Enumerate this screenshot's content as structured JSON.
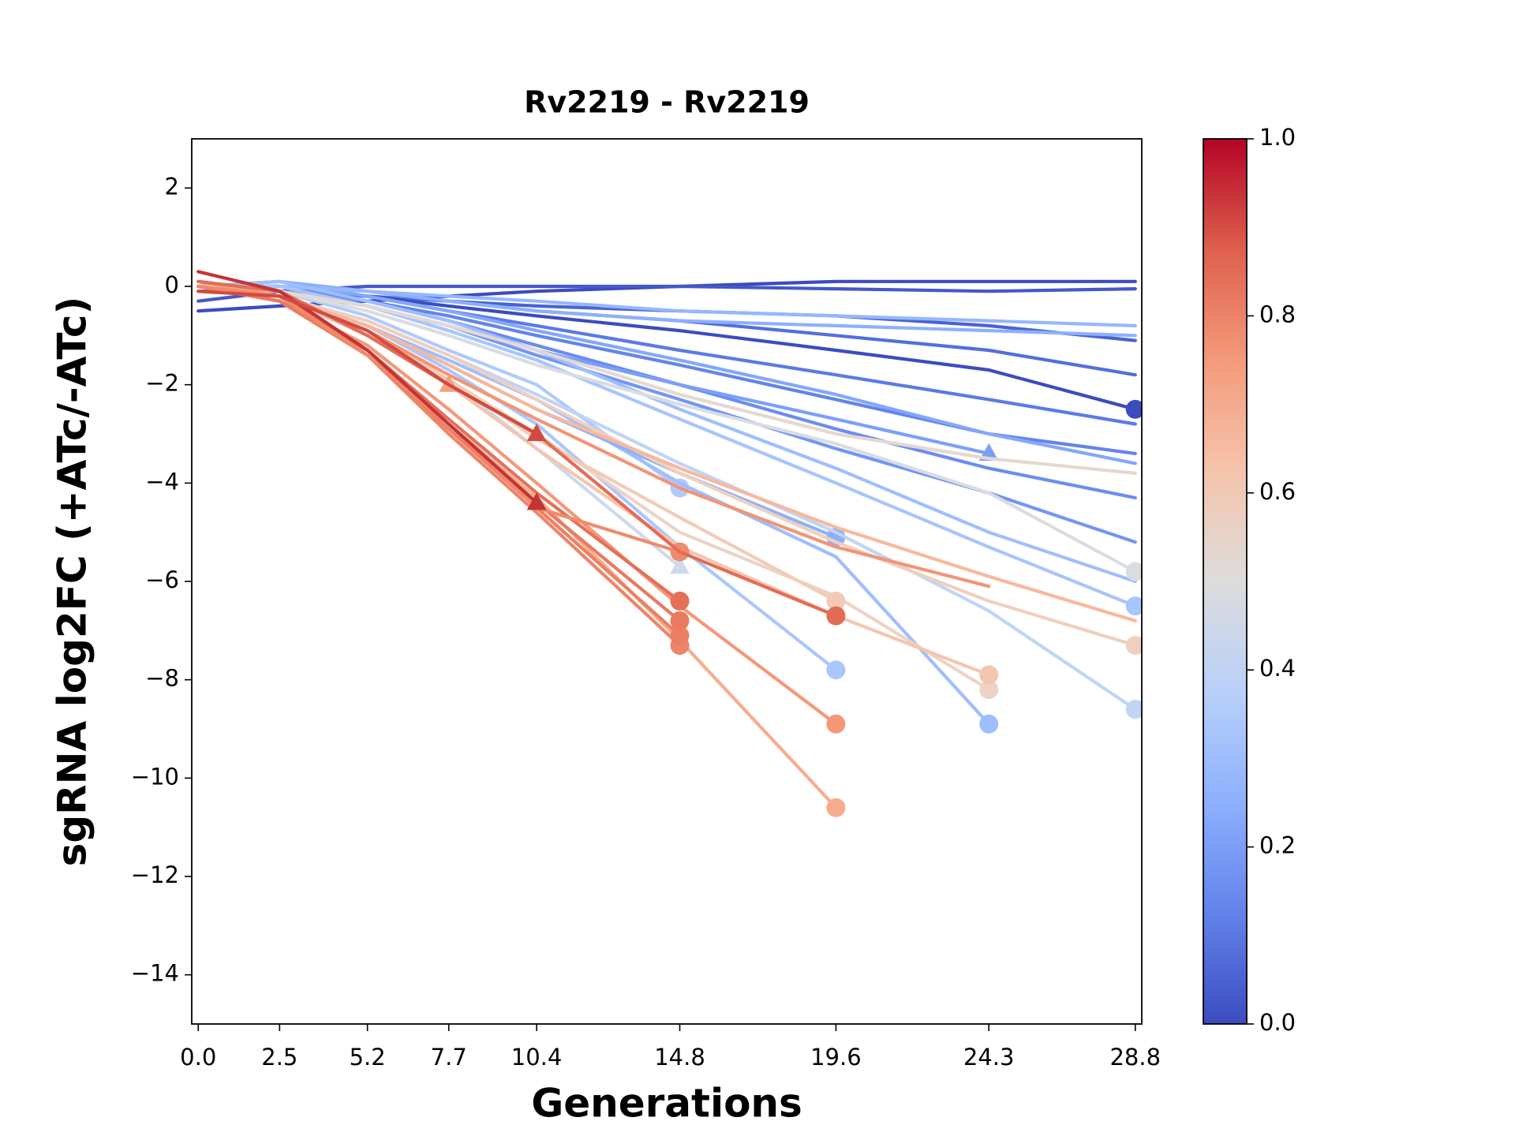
{
  "chart_data": {
    "type": "line",
    "title": "Rv2219 - Rv2219",
    "xlabel": "Generations",
    "ylabel": "sgRNA log2FC (+ATc/-ATc)",
    "x": [
      0,
      2.5,
      5.2,
      7.7,
      10.4,
      14.8,
      19.6,
      24.3,
      28.8
    ],
    "xlim": [
      -0.2,
      29
    ],
    "xticks": [
      {
        "value": 0,
        "label": "0.0"
      },
      2.5,
      5.2,
      7.7,
      10.4,
      14.8,
      19.6,
      24.3,
      28.8
    ],
    "ylim": [
      -15,
      3
    ],
    "yticks": [
      {
        "value": -14,
        "label": "−14"
      },
      {
        "value": -12,
        "label": "−12"
      },
      {
        "value": -10,
        "label": "−10"
      },
      {
        "value": -8,
        "label": "−8"
      },
      {
        "value": -6,
        "label": "−6"
      },
      {
        "value": -4,
        "label": "−4"
      },
      {
        "value": -2,
        "label": "−2"
      },
      0,
      2
    ],
    "colorbar": {
      "colors": [
        "#3b4cc0",
        "#6282ea",
        "#8db0fe",
        "#b8d0f9",
        "#dddcdc",
        "#f5c4ac",
        "#f49a7b",
        "#de604d",
        "#b40426"
      ],
      "lim": [
        0,
        1
      ],
      "ticks": [
        {
          "value": 0,
          "label": "0.0"
        },
        {
          "value": 0.2,
          "label": "0.2"
        },
        {
          "value": 0.4,
          "label": "0.4"
        },
        {
          "value": 0.6,
          "label": "0.6"
        },
        {
          "value": 0.8,
          "label": "0.8"
        },
        {
          "value": 1,
          "label": "1.0"
        }
      ]
    },
    "series": [
      {
        "color": "#3b4cc0",
        "values": [
          -0.5,
          -0.4,
          -0.3,
          -0.2,
          -0.1,
          0,
          0.1,
          0.1,
          0.1
        ]
      },
      {
        "color": "#4358cb",
        "values": [
          -0.3,
          -0.1,
          0,
          0,
          0,
          0,
          -0.05,
          -0.1,
          -0.05
        ]
      },
      {
        "color": "#4a63d3",
        "values": [
          -0.1,
          -0.1,
          -0.2,
          -0.3,
          -0.4,
          -0.5,
          -0.6,
          -0.8,
          -1.1
        ]
      },
      {
        "color": "#536edd",
        "values": [
          0,
          -0.1,
          -0.2,
          -0.3,
          -0.5,
          -0.7,
          -1.0,
          -1.3,
          -1.8
        ]
      },
      {
        "color": "#3b4cc0",
        "marker": "circle",
        "values": [
          0,
          0,
          -0.2,
          -0.4,
          -0.6,
          -0.9,
          -1.3,
          -1.7,
          -2.5
        ]
      },
      {
        "color": "#5b7ae5",
        "values": [
          0,
          0,
          -0.2,
          -0.5,
          -0.8,
          -1.3,
          -1.8,
          -2.3,
          -2.8
        ]
      },
      {
        "color": "#6384eb",
        "values": [
          0,
          -0.1,
          -0.3,
          -0.6,
          -1.0,
          -1.6,
          -2.3,
          -3.0,
          -3.4
        ]
      },
      {
        "color": "#6b8df0",
        "values": [
          0,
          0,
          -0.3,
          -0.7,
          -1.2,
          -2.0,
          -2.9,
          -3.7,
          -4.3
        ]
      },
      {
        "color": "#7396f5",
        "values": [
          0,
          -0.1,
          -0.4,
          -0.8,
          -1.4,
          -2.3,
          -3.3,
          -4.2,
          -5.2
        ]
      },
      {
        "color": "#7b9ff9",
        "marker": "triangle",
        "values": [
          0,
          -0.1,
          -0.4,
          -0.8,
          -1.3,
          -2.0,
          -2.7,
          -3.4,
          null
        ]
      },
      {
        "color": "#84a7fc",
        "values": [
          0,
          0.1,
          -0.2,
          -0.5,
          -0.9,
          -1.5,
          -2.2,
          -3.0,
          -3.6
        ]
      },
      {
        "color": "#8db0fe",
        "values": [
          0,
          0.1,
          -0.1,
          -0.3,
          -0.5,
          -0.7,
          -0.8,
          -0.9,
          -1.0
        ]
      },
      {
        "color": "#96b7ff",
        "values": [
          0,
          0,
          -0.1,
          -0.2,
          -0.3,
          -0.5,
          -0.6,
          -0.7,
          -0.8
        ]
      },
      {
        "color": "#9ebeff",
        "values": [
          0,
          0.1,
          -0.3,
          -0.7,
          -1.3,
          -2.5,
          -3.7,
          -5.0,
          -6.0
        ]
      },
      {
        "color": "#a7c5fe",
        "marker": "circle",
        "values": [
          0,
          0,
          -0.4,
          -0.9,
          -1.5,
          -2.7,
          -4.0,
          -5.3,
          -6.5
        ]
      },
      {
        "color": "#afcafc",
        "marker": "circle",
        "values": [
          0,
          -0.1,
          -0.6,
          -1.3,
          -2.0,
          -4.1,
          null,
          null,
          null
        ]
      },
      {
        "color": "#aac7fd",
        "marker": "circle",
        "values": [
          0,
          -0.2,
          -0.8,
          -1.7,
          -2.8,
          -5.3,
          -7.8,
          null,
          null
        ]
      },
      {
        "color": "#9ebeff",
        "marker": "circle",
        "values": [
          0,
          -0.2,
          -0.8,
          -1.5,
          -2.3,
          -4.0,
          -5.5,
          -8.9,
          null
        ]
      },
      {
        "color": "#8db0fe",
        "marker": "circle",
        "values": [
          0,
          -0.2,
          -0.8,
          -1.6,
          -2.5,
          -3.8,
          -5.1,
          null,
          null
        ]
      },
      {
        "color": "#c0d4f5",
        "marker": "circle",
        "values": [
          0,
          -0.2,
          -0.7,
          -1.4,
          -2.2,
          -3.6,
          -5.0,
          -6.6,
          -8.6
        ]
      },
      {
        "color": "#cdd9ec",
        "marker": "triangle",
        "values": [
          0,
          -0.2,
          -0.9,
          -1.9,
          -3.3,
          -5.7,
          null,
          null,
          null
        ]
      },
      {
        "color": "#d9dce1",
        "marker": "circle",
        "values": [
          0,
          -0.1,
          -0.5,
          -1.0,
          -1.6,
          -2.4,
          -3.2,
          -4.2,
          -5.8
        ]
      },
      {
        "color": "#e5d8d1",
        "values": [
          0,
          -0.1,
          -0.4,
          -0.8,
          -1.3,
          -2.2,
          -3.0,
          -3.5,
          -3.8
        ]
      },
      {
        "color": "#ecd3c5",
        "marker": "circle",
        "values": [
          0,
          -0.2,
          -0.9,
          -1.9,
          -3.0,
          -5.0,
          -6.3,
          -8.2,
          null
        ]
      },
      {
        "color": "#efcfbf",
        "marker": "circle",
        "values": [
          0,
          -0.2,
          -0.7,
          -1.4,
          -2.3,
          -3.8,
          -5.2,
          -6.4,
          -7.3
        ]
      },
      {
        "color": "#f2cbb7",
        "marker": "circle",
        "values": [
          0,
          -0.2,
          -0.9,
          -1.9,
          -3.1,
          -4.7,
          -6.4,
          null,
          null
        ]
      },
      {
        "color": "#f4c5ad",
        "marker": "circle",
        "values": [
          0,
          -0.2,
          -1.0,
          -2.0,
          -3.3,
          -5.3,
          -6.7,
          -7.9,
          null
        ]
      },
      {
        "color": "#f7b89c",
        "values": [
          0.1,
          -0.2,
          -0.8,
          -1.6,
          -2.5,
          -3.7,
          -4.9,
          -5.9,
          -6.8
        ]
      },
      {
        "color": "#f39475",
        "values": [
          0.1,
          -0.2,
          -0.9,
          -1.8,
          -2.7,
          -4.1,
          -5.3,
          -6.1,
          null
        ]
      },
      {
        "color": "#f5a081",
        "marker": "triangle",
        "values": [
          0.1,
          -0.2,
          -0.9,
          -2.0,
          null,
          null,
          null,
          null,
          null
        ]
      },
      {
        "color": "#f7ac8e",
        "marker": "circle",
        "values": [
          0,
          -0.3,
          -1.3,
          -2.8,
          -4.3,
          -7.2,
          -10.6,
          null,
          null
        ]
      },
      {
        "color": "#f4987a",
        "marker": "circle",
        "values": [
          0,
          -0.3,
          -1.2,
          -2.5,
          -4.0,
          -6.5,
          -8.9,
          null,
          null
        ]
      },
      {
        "color": "#ee8468",
        "marker": "circle",
        "values": [
          0,
          -0.3,
          -1.4,
          -3.0,
          -4.6,
          -7.3,
          null,
          null,
          null
        ]
      },
      {
        "color": "#ec7f63",
        "marker": "circle",
        "values": [
          0,
          -0.3,
          -1.4,
          -2.9,
          -4.5,
          -7.1,
          null,
          null,
          null
        ]
      },
      {
        "color": "#e97a5f",
        "marker": "circle",
        "values": [
          0,
          -0.3,
          -1.3,
          -2.8,
          -4.4,
          -6.8,
          null,
          null,
          null
        ]
      },
      {
        "color": "#e57058",
        "marker": "circle",
        "values": [
          0,
          -0.2,
          -1.3,
          -2.7,
          -4.2,
          -6.4,
          null,
          null,
          null
        ]
      },
      {
        "color": "#f08a6c",
        "marker": "circle",
        "values": [
          0,
          -0.2,
          -1.4,
          -2.8,
          -4.5,
          -5.4,
          null,
          null,
          null
        ]
      },
      {
        "color": "#e36c55",
        "marker": "circle",
        "values": [
          0.1,
          -0.1,
          -1.0,
          -2.0,
          -3.0,
          -5.4,
          -6.7,
          null,
          null
        ]
      },
      {
        "color": "#c53334",
        "marker": "triangle",
        "values": [
          0.3,
          -0.1,
          -1.3,
          -2.8,
          -4.4,
          null,
          null,
          null,
          null
        ]
      },
      {
        "color": "#d24b40",
        "marker": "triangle",
        "values": [
          -0.1,
          -0.2,
          -0.9,
          -2.0,
          -3.0,
          null,
          null,
          null,
          null
        ]
      }
    ]
  }
}
